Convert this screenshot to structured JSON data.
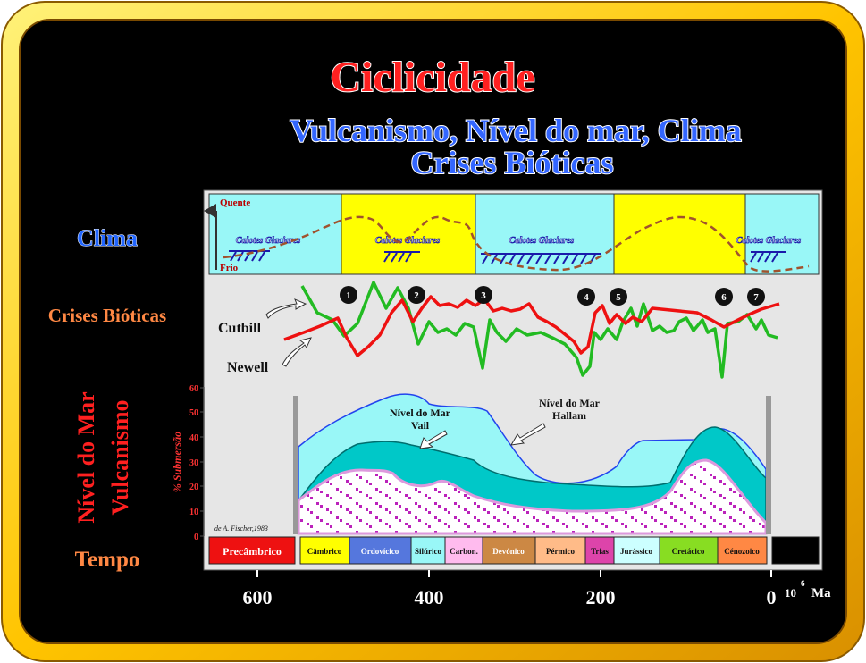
{
  "title": "Ciclicidade",
  "subtitle_line1": "Vulcanismo, Nível do mar, Clima",
  "subtitle_line2": "Crises Bióticas",
  "side_labels": {
    "clima": "Clima",
    "crises": "Crises Bióticas",
    "nivel_line1": "Nível do Mar",
    "nivel_line2": "Vulcanismo",
    "tempo": "Tempo"
  },
  "climate": {
    "quente": "Quente",
    "frio": "Frio",
    "ice_label": "Calotes Glaciares",
    "colors": {
      "glacial": "#99f7f7",
      "warm": "#ffff00",
      "curve": "#a0522d"
    }
  },
  "crises": {
    "series_names": [
      "Cutbill",
      "Newell"
    ],
    "numbers": [
      "1",
      "2",
      "3",
      "4",
      "5",
      "6",
      "7"
    ],
    "colors": {
      "cutbill": "#22bb22",
      "newell": "#ee1111"
    }
  },
  "sea": {
    "ylabel": "% Submersão",
    "yticks": [
      "60",
      "50",
      "40",
      "30",
      "20",
      "10",
      "0"
    ],
    "label_vail_line1": "Nível do Mar",
    "label_vail_line2": "Vail",
    "label_hallam_line1": "Nível do Mar",
    "label_hallam_line2": "Hallam",
    "credit": "de A. Fischer,1983"
  },
  "periods": [
    {
      "name": "Precâmbrico",
      "color": "#ee1111"
    },
    {
      "name": "Câmbrico",
      "color": "#ffff00"
    },
    {
      "name": "Ordovícico",
      "color": "#5577dd"
    },
    {
      "name": "Silúrico",
      "color": "#99f7f7"
    },
    {
      "name": "Carbon.",
      "color": "#ffbbee"
    },
    {
      "name": "Devónico",
      "color": "#cc8844"
    },
    {
      "name": "Pérmico",
      "color": "#ffbb88"
    },
    {
      "name": "Trias",
      "color": "#dd44aa"
    },
    {
      "name": "Jurássico",
      "color": "#ccffff"
    },
    {
      "name": "Cretácico",
      "color": "#88dd22"
    },
    {
      "name": "Cénozoico",
      "color": "#ff8844"
    }
  ],
  "axis": {
    "ticks": [
      "600",
      "400",
      "200",
      "0"
    ],
    "unit_base": "10",
    "unit_exp": "6",
    "unit": "Ma"
  }
}
